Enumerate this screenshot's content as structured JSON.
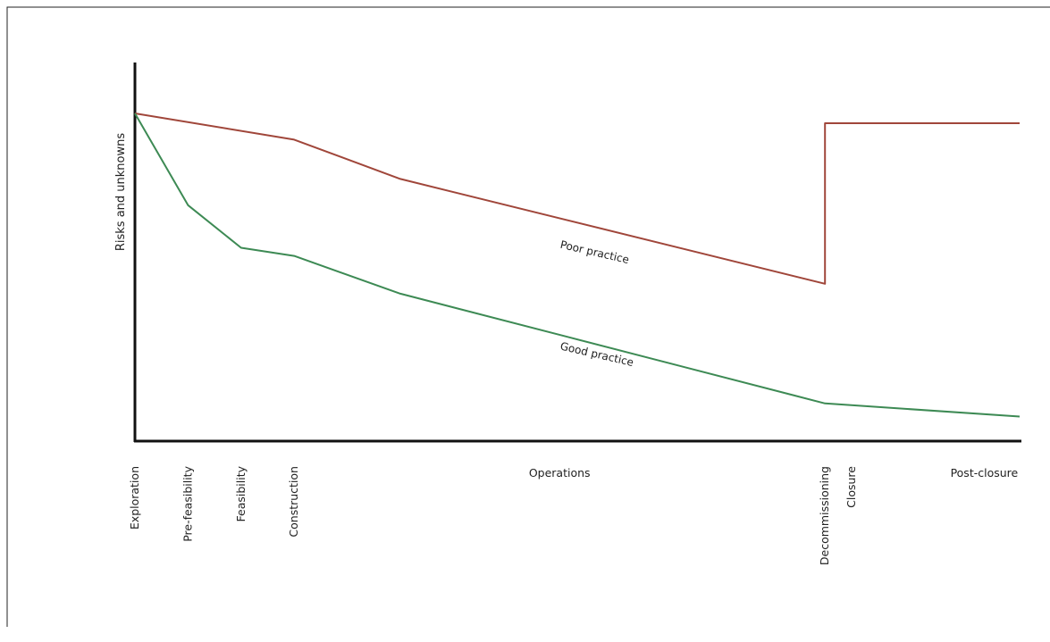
{
  "chart_data": {
    "type": "line",
    "title": "",
    "xlabel": "",
    "ylabel": "Risks and unknowns",
    "x_unit": "project stage position",
    "xlim": [
      0,
      100
    ],
    "ylim": [
      0,
      100
    ],
    "grid": false,
    "legend": "none",
    "stage_labels": [
      {
        "text": "Exploration",
        "x": 0,
        "orientation": "vertical"
      },
      {
        "text": "Pre-feasibility",
        "x": 6,
        "orientation": "vertical"
      },
      {
        "text": "Feasibility",
        "x": 12,
        "orientation": "vertical"
      },
      {
        "text": "Construction",
        "x": 18,
        "orientation": "vertical"
      },
      {
        "text": "Operations",
        "x": 48,
        "orientation": "horizontal"
      },
      {
        "text": "Decommissioning",
        "x": 78,
        "orientation": "vertical"
      },
      {
        "text": "Closure",
        "x": 81,
        "orientation": "vertical"
      },
      {
        "text": "Post-closure",
        "x": 96,
        "orientation": "horizontal"
      }
    ],
    "series": [
      {
        "label": "Poor practice",
        "color": "#a0463a",
        "label_x": 48,
        "label_y": 59,
        "points": [
          {
            "x": 0,
            "y": 100
          },
          {
            "x": 18,
            "y": 92
          },
          {
            "x": 30,
            "y": 80
          },
          {
            "x": 78,
            "y": 48
          },
          {
            "x": 78,
            "y": 97
          },
          {
            "x": 100,
            "y": 97
          }
        ]
      },
      {
        "label": "Good practice",
        "color": "#3d8a54",
        "label_x": 48,
        "label_y": 28,
        "points": [
          {
            "x": 0,
            "y": 100
          },
          {
            "x": 6,
            "y": 72
          },
          {
            "x": 12,
            "y": 59
          },
          {
            "x": 18,
            "y": 56.5
          },
          {
            "x": 30,
            "y": 45
          },
          {
            "x": 78,
            "y": 11.5
          },
          {
            "x": 100,
            "y": 7.5
          }
        ]
      }
    ]
  }
}
